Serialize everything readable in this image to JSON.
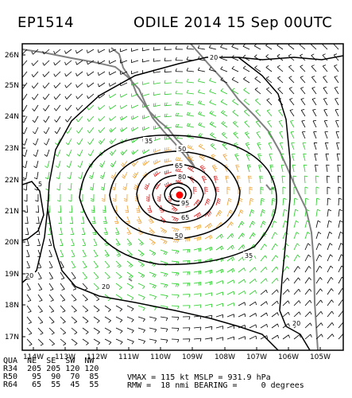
{
  "header": {
    "storm_id": "EP1514",
    "storm_info": "ODILE 2014 15 Sep 00UTC"
  },
  "map": {
    "lat_labels": [
      "26N",
      "25N",
      "24N",
      "23N",
      "22N",
      "21N",
      "20N",
      "19N",
      "18N",
      "17N"
    ],
    "lon_labels": [
      "114W",
      "113W",
      "112W",
      "111W",
      "110W",
      "109W",
      "108W",
      "107W",
      "106W",
      "105W"
    ],
    "contour_labels": [
      "20",
      "35",
      "50",
      "65",
      "80",
      "95",
      "65",
      "50",
      "35",
      "20",
      "20",
      "20",
      "5"
    ],
    "wind_colors": {
      "below_34kt": "#000000",
      "34_to_50kt": "#22cc22",
      "50_to_64kt": "#f0a030",
      "above_64kt": "#e02020"
    },
    "coastline_color": "#808080",
    "center_marker_color": "#ff0000"
  },
  "radii_table": {
    "header": [
      "QUA",
      "NE",
      "SE",
      "SW",
      "NW"
    ],
    "rows": [
      [
        "R34",
        "205",
        "205",
        "120",
        "120"
      ],
      [
        "R50",
        "95",
        "90",
        "70",
        "85"
      ],
      [
        "R64",
        "65",
        "55",
        "45",
        "55"
      ]
    ]
  },
  "stats": {
    "vmax_label": "VMAX =",
    "vmax_value": "115 kt",
    "mslp_label": "MSLP =",
    "mslp_value": "931.9 hPa",
    "rmw_label": "RMW =",
    "rmw_value": "18 nmi",
    "bearing_label": "BEARING =",
    "bearing_value": "0 degrees"
  }
}
